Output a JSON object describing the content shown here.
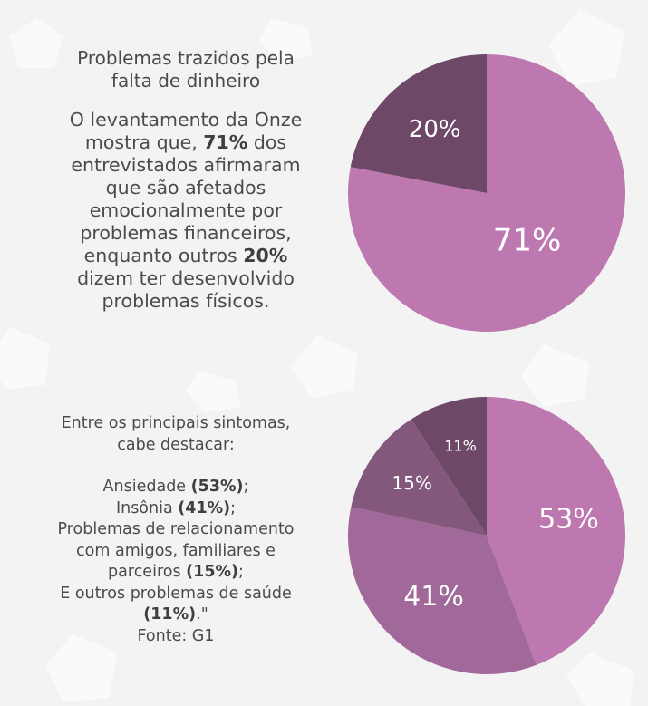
{
  "text_block_1": {
    "title_line1": "Problemas trazidos pela",
    "title_line2": "falta de dinheiro",
    "para_l1": "O levantamento da Onze",
    "para_l2_pre": "mostra que, ",
    "para_l2_bold": "71%",
    "para_l2_post": " dos",
    "para_l3": "entrevistados afirmaram",
    "para_l4": "que são afetados",
    "para_l5": "emocionalmente por",
    "para_l6": "problemas financeiros,",
    "para_l7_pre": "enquanto outros ",
    "para_l7_bold": "20%",
    "para_l8": "dizem ter desenvolvido",
    "para_l9": "problemas físicos."
  },
  "text_block_2": {
    "intro_l1": "Entre os principais sintomas,",
    "intro_l2": "cabe destacar:",
    "ans_pre": "Ansiedade ",
    "ans_bold": "(53%)",
    "ans_post": ";",
    "ins_pre": "Insônia ",
    "ins_bold": "(41%)",
    "ins_post": ";",
    "rel_l1": "Problemas de relacionamento",
    "rel_l2": "com amigos, familiares e",
    "rel_l3_pre": "parceiros ",
    "rel_l3_bold": "(15%)",
    "rel_l3_post": ";",
    "out_l1": "E outros problemas de saúde",
    "out_l2_bold": "(11%)",
    "out_l2_post": ".\"",
    "source": "Fonte: G1"
  },
  "chart_data": [
    {
      "type": "pie",
      "slices": [
        {
          "value": 71,
          "label": "71%",
          "color": "#bd78b0"
        },
        {
          "value": 20,
          "label": "20%",
          "color": "#6d4867"
        }
      ],
      "sum_for_scale": 91
    },
    {
      "type": "pie",
      "slices": [
        {
          "value": 53,
          "label": "53%",
          "color": "#bd78b0"
        },
        {
          "value": 41,
          "label": "41%",
          "color": "#a1689a"
        },
        {
          "value": 15,
          "label": "15%",
          "color": "#84587d"
        },
        {
          "value": 11,
          "label": "11%",
          "color": "#6d4867"
        }
      ],
      "sum_for_scale": 120
    }
  ],
  "colors": {
    "background": "#f4f3f4",
    "pattern": "#ffffff",
    "text": "#4b4b4b"
  }
}
